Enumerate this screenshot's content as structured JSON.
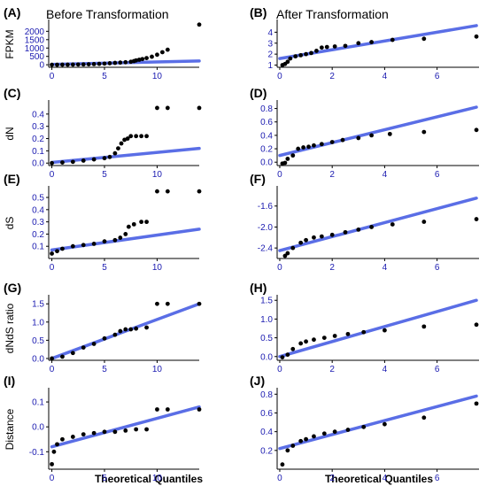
{
  "headers": {
    "left": "Before Transformation",
    "right": "After Transformation"
  },
  "xlabel": "Theoretical Quantiles",
  "colors": {
    "line": "#5a6ee6",
    "points": "#000000",
    "axis": "#000000",
    "ticks": "#1a1ab0",
    "points_mid": "#0a7a1a"
  },
  "chart_data": [
    {
      "panel": "(A)",
      "type": "scatter",
      "ylabel": "FPKM",
      "xlim": [
        -0.3,
        14
      ],
      "ylim": [
        -150,
        2600
      ],
      "xticks": [
        0,
        5,
        10
      ],
      "yticks": [
        0,
        500,
        1000,
        1500,
        2000
      ],
      "fit_line": [
        [
          0,
          20
        ],
        [
          14,
          230
        ]
      ],
      "points": [
        [
          0,
          0
        ],
        [
          0.5,
          2
        ],
        [
          1,
          5
        ],
        [
          1.5,
          8
        ],
        [
          2,
          12
        ],
        [
          2.5,
          16
        ],
        [
          3,
          22
        ],
        [
          3.5,
          30
        ],
        [
          4,
          40
        ],
        [
          4.5,
          55
        ],
        [
          5,
          70
        ],
        [
          5.5,
          90
        ],
        [
          6,
          110
        ],
        [
          6.5,
          130
        ],
        [
          7,
          150
        ],
        [
          7.5,
          180
        ],
        [
          7.8,
          220
        ],
        [
          8,
          260
        ],
        [
          8.3,
          300
        ],
        [
          8.6,
          340
        ],
        [
          9,
          400
        ],
        [
          9.5,
          480
        ],
        [
          10,
          600
        ],
        [
          10.5,
          750
        ],
        [
          11,
          900
        ],
        [
          14,
          2400
        ]
      ]
    },
    {
      "panel": "(B)",
      "type": "scatter",
      "ylabel": "",
      "xlim": [
        -0.1,
        7.6
      ],
      "ylim": [
        0.8,
        5.0
      ],
      "xticks": [
        0,
        2,
        4,
        6
      ],
      "yticks": [
        1,
        2,
        3,
        4
      ],
      "fit_line": [
        [
          0,
          1.6
        ],
        [
          7.5,
          4.6
        ]
      ],
      "points": [
        [
          0.1,
          1.0
        ],
        [
          0.2,
          1.1
        ],
        [
          0.3,
          1.3
        ],
        [
          0.4,
          1.6
        ],
        [
          0.6,
          1.8
        ],
        [
          0.8,
          1.9
        ],
        [
          1.0,
          2.0
        ],
        [
          1.2,
          2.1
        ],
        [
          1.4,
          2.3
        ],
        [
          1.6,
          2.6
        ],
        [
          1.8,
          2.65
        ],
        [
          2.1,
          2.7
        ],
        [
          2.5,
          2.75
        ],
        [
          3.0,
          3.0
        ],
        [
          3.5,
          3.1
        ],
        [
          4.3,
          3.3
        ],
        [
          5.5,
          3.4
        ],
        [
          7.5,
          3.6
        ]
      ]
    },
    {
      "panel": "(C)",
      "type": "scatter",
      "ylabel": "dN",
      "xlim": [
        -0.3,
        14
      ],
      "ylim": [
        -0.02,
        0.5
      ],
      "xticks": [
        0,
        5,
        10
      ],
      "yticks": [
        0.0,
        0.1,
        0.2,
        0.3,
        0.4
      ],
      "fit_line": [
        [
          0,
          0.005
        ],
        [
          14,
          0.12
        ]
      ],
      "points": [
        [
          0,
          0
        ],
        [
          1,
          0.005
        ],
        [
          2,
          0.01
        ],
        [
          3,
          0.02
        ],
        [
          4,
          0.03
        ],
        [
          5,
          0.04
        ],
        [
          5.5,
          0.05
        ],
        [
          6,
          0.08
        ],
        [
          6.3,
          0.12
        ],
        [
          6.6,
          0.16
        ],
        [
          6.9,
          0.19
        ],
        [
          7.2,
          0.2
        ],
        [
          7.5,
          0.22
        ],
        [
          8,
          0.22
        ],
        [
          8.5,
          0.22
        ],
        [
          9,
          0.22
        ],
        [
          10,
          0.45
        ],
        [
          11,
          0.45
        ],
        [
          14,
          0.45
        ]
      ]
    },
    {
      "panel": "(D)",
      "type": "scatter",
      "ylabel": "",
      "xlim": [
        -0.1,
        7.6
      ],
      "ylim": [
        -0.05,
        0.9
      ],
      "xticks": [
        0,
        2,
        4,
        6
      ],
      "yticks": [
        0.0,
        0.2,
        0.4,
        0.6,
        0.8
      ],
      "fit_line": [
        [
          0,
          0.1
        ],
        [
          7.5,
          0.82
        ]
      ],
      "points": [
        [
          0.1,
          -0.02
        ],
        [
          0.2,
          -0.01
        ],
        [
          0.3,
          0.05
        ],
        [
          0.5,
          0.1
        ],
        [
          0.7,
          0.2
        ],
        [
          0.9,
          0.22
        ],
        [
          1.1,
          0.23
        ],
        [
          1.3,
          0.25
        ],
        [
          1.6,
          0.27
        ],
        [
          2.0,
          0.3
        ],
        [
          2.4,
          0.33
        ],
        [
          3.0,
          0.36
        ],
        [
          3.5,
          0.4
        ],
        [
          4.2,
          0.42
        ],
        [
          5.5,
          0.45
        ],
        [
          7.5,
          0.48
        ]
      ]
    },
    {
      "panel": "(E)",
      "type": "scatter",
      "ylabel": "dS",
      "xlim": [
        -0.3,
        14
      ],
      "ylim": [
        0.0,
        0.58
      ],
      "xticks": [
        0,
        5,
        10
      ],
      "yticks": [
        0.1,
        0.2,
        0.3,
        0.4,
        0.5
      ],
      "fit_line": [
        [
          0,
          0.07
        ],
        [
          14,
          0.24
        ]
      ],
      "points": [
        [
          0,
          0.04
        ],
        [
          0.5,
          0.06
        ],
        [
          1,
          0.08
        ],
        [
          2,
          0.1
        ],
        [
          3,
          0.11
        ],
        [
          4,
          0.12
        ],
        [
          5,
          0.14
        ],
        [
          6,
          0.15
        ],
        [
          6.5,
          0.17
        ],
        [
          7,
          0.2
        ],
        [
          7.3,
          0.26
        ],
        [
          7.8,
          0.28
        ],
        [
          8.5,
          0.3
        ],
        [
          9,
          0.3
        ],
        [
          10,
          0.55
        ],
        [
          11,
          0.55
        ],
        [
          14,
          0.55
        ]
      ]
    },
    {
      "panel": "(F)",
      "type": "scatter",
      "ylabel": "",
      "xlim": [
        -0.1,
        7.6
      ],
      "ylim": [
        -2.6,
        -1.25
      ],
      "xticks": [
        0,
        2,
        4,
        6
      ],
      "yticks": [
        -2.4,
        -2.0,
        -1.6
      ],
      "fit_line": [
        [
          0,
          -2.45
        ],
        [
          7.5,
          -1.45
        ]
      ],
      "points": [
        [
          0.2,
          -2.55
        ],
        [
          0.3,
          -2.5
        ],
        [
          0.5,
          -2.4
        ],
        [
          0.8,
          -2.3
        ],
        [
          1.0,
          -2.25
        ],
        [
          1.3,
          -2.2
        ],
        [
          1.6,
          -2.18
        ],
        [
          2.0,
          -2.15
        ],
        [
          2.5,
          -2.1
        ],
        [
          3.0,
          -2.05
        ],
        [
          3.5,
          -2.0
        ],
        [
          4.3,
          -1.95
        ],
        [
          5.5,
          -1.9
        ],
        [
          7.5,
          -1.85
        ]
      ]
    },
    {
      "panel": "(G)",
      "type": "scatter",
      "ylabel": "dNdS ratio",
      "xlim": [
        -0.3,
        14
      ],
      "ylim": [
        -0.05,
        1.7
      ],
      "xticks": [
        0,
        5,
        10
      ],
      "yticks": [
        0.0,
        0.5,
        1.0,
        1.5
      ],
      "fit_line": [
        [
          0,
          0.0
        ],
        [
          14,
          1.5
        ]
      ],
      "points": [
        [
          0,
          0
        ],
        [
          1,
          0.05
        ],
        [
          2,
          0.15
        ],
        [
          3,
          0.3
        ],
        [
          4,
          0.4
        ],
        [
          5,
          0.55
        ],
        [
          6,
          0.65
        ],
        [
          6.5,
          0.75
        ],
        [
          7,
          0.8
        ],
        [
          7.5,
          0.8
        ],
        [
          8,
          0.82
        ],
        [
          9,
          0.85
        ],
        [
          10,
          1.5
        ],
        [
          11,
          1.5
        ],
        [
          14,
          1.5
        ]
      ]
    },
    {
      "panel": "(H)",
      "type": "scatter",
      "ylabel": "",
      "xlim": [
        -0.1,
        7.6
      ],
      "ylim": [
        -0.1,
        1.6
      ],
      "xticks": [
        0,
        2,
        4,
        6
      ],
      "yticks": [
        0.0,
        0.5,
        1.0,
        1.5
      ],
      "fit_line": [
        [
          0,
          0.0
        ],
        [
          7.5,
          1.5
        ]
      ],
      "points": [
        [
          0.1,
          -0.02
        ],
        [
          0.3,
          0.05
        ],
        [
          0.5,
          0.2
        ],
        [
          0.8,
          0.35
        ],
        [
          1.0,
          0.4
        ],
        [
          1.3,
          0.45
        ],
        [
          1.7,
          0.5
        ],
        [
          2.1,
          0.55
        ],
        [
          2.6,
          0.6
        ],
        [
          3.2,
          0.65
        ],
        [
          4.0,
          0.7
        ],
        [
          5.5,
          0.8
        ],
        [
          7.5,
          0.85
        ]
      ]
    },
    {
      "panel": "(I)",
      "type": "scatter",
      "ylabel": "Distance",
      "xlim": [
        -0.3,
        14
      ],
      "ylim": [
        -0.17,
        0.15
      ],
      "xticks": [
        0,
        5,
        10
      ],
      "yticks": [
        -0.1,
        0.0,
        0.1
      ],
      "fit_line": [
        [
          0,
          -0.08
        ],
        [
          14,
          0.08
        ]
      ],
      "points": [
        [
          0,
          -0.15
        ],
        [
          0.2,
          -0.1
        ],
        [
          0.5,
          -0.07
        ],
        [
          1,
          -0.05
        ],
        [
          2,
          -0.04
        ],
        [
          3,
          -0.03
        ],
        [
          4,
          -0.025
        ],
        [
          5,
          -0.02
        ],
        [
          6,
          -0.02
        ],
        [
          7,
          -0.015
        ],
        [
          8,
          -0.01
        ],
        [
          9,
          -0.01
        ],
        [
          10,
          0.07
        ],
        [
          11,
          0.07
        ],
        [
          14,
          0.07
        ]
      ]
    },
    {
      "panel": "(J)",
      "type": "scatter",
      "ylabel": "",
      "xlim": [
        -0.1,
        7.6
      ],
      "ylim": [
        0.0,
        0.85
      ],
      "xticks": [
        0,
        2,
        4,
        6
      ],
      "yticks": [
        0.2,
        0.4,
        0.6,
        0.8
      ],
      "fit_line": [
        [
          0,
          0.22
        ],
        [
          7.5,
          0.78
        ]
      ],
      "points": [
        [
          0.1,
          0.05
        ],
        [
          0.3,
          0.2
        ],
        [
          0.5,
          0.25
        ],
        [
          0.8,
          0.3
        ],
        [
          1.0,
          0.32
        ],
        [
          1.3,
          0.35
        ],
        [
          1.7,
          0.38
        ],
        [
          2.1,
          0.4
        ],
        [
          2.6,
          0.42
        ],
        [
          3.2,
          0.45
        ],
        [
          4.0,
          0.48
        ],
        [
          5.5,
          0.55
        ],
        [
          7.5,
          0.7
        ]
      ]
    }
  ]
}
